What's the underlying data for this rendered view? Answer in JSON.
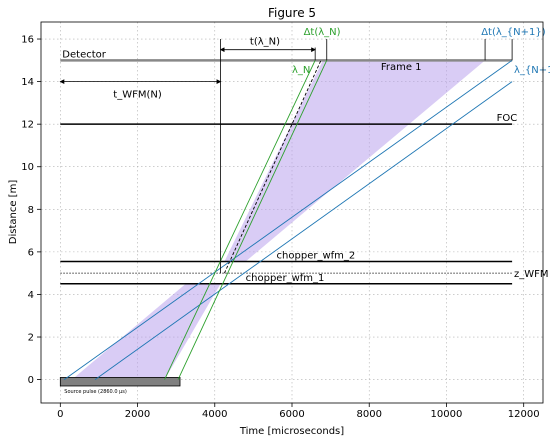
{
  "chart_data": {
    "type": "line",
    "title": "Figure 5",
    "xlabel": "Time [microseconds]",
    "ylabel": "Distance [m]",
    "xlim": [
      -500,
      12500
    ],
    "ylim": [
      -1.1,
      16.8
    ],
    "grid": true,
    "grid_style": "dotted",
    "xticks": [
      0,
      2000,
      4000,
      6000,
      8000,
      10000,
      12000
    ],
    "yticks": [
      0,
      2,
      4,
      6,
      8,
      10,
      12,
      14,
      16
    ],
    "colors": {
      "blue": "#1f77b4",
      "green": "#2ca02c",
      "frame_fill": "#b9a3ec",
      "pulse_fill": "#808080",
      "detector": "#888888"
    },
    "components": [
      {
        "name": "Detector",
        "distance": 15.0,
        "t_start": 0,
        "t_end": 11700,
        "color": "#888888",
        "width": 2.5
      },
      {
        "name": "FOC",
        "distance": 12.0,
        "t_start": 0,
        "t_end": 11700,
        "color": "#000000",
        "width": 1.5
      },
      {
        "name": "chopper_wfm_2",
        "distance": 5.55,
        "t_start": 0,
        "t_end": 11700,
        "color": "#000000",
        "width": 1.5
      },
      {
        "name": "chopper_wfm_1",
        "distance": 4.5,
        "t_start": 0,
        "t_end": 11700,
        "color": "#000000",
        "width": 1.5
      }
    ],
    "wfm_line": {
      "distance": 5.0,
      "label": "z_WFM"
    },
    "source_pulse": {
      "label": "Source pulse (2860.0 μs)",
      "t_start": 0,
      "t_end": 3100,
      "y_low": -0.3,
      "y_high": 0.1
    },
    "frame": {
      "label": "Frame 1",
      "polygons": [
        [
          [
            300,
            0
          ],
          [
            2700,
            0
          ],
          [
            4150,
            4.5
          ],
          [
            3250,
            4.5
          ]
        ],
        [
          [
            4250,
            5.55
          ],
          [
            4800,
            5.55
          ],
          [
            11000,
            15.0
          ],
          [
            6800,
            15.0
          ]
        ]
      ]
    },
    "series": [
      {
        "name": "λ_N+1 (blue, left edge)",
        "color": "#1f77b4",
        "points": [
          [
            100,
            0
          ],
          [
            11700,
            15.0
          ]
        ]
      },
      {
        "name": "λ_N+1 (blue, right edge)",
        "color": "#1f77b4",
        "points": [
          [
            900,
            0
          ],
          [
            11700,
            14.0
          ]
        ]
      },
      {
        "name": "λ_N (green, left edge)",
        "color": "#2ca02c",
        "points": [
          [
            2700,
            0
          ],
          [
            6600,
            15.0
          ]
        ]
      },
      {
        "name": "λ_N (green, right edge)",
        "color": "#2ca02c",
        "points": [
          [
            3050,
            0
          ],
          [
            6900,
            15.0
          ]
        ]
      },
      {
        "name": "λ_N (dashed centre)",
        "color": "#000000",
        "dashed": true,
        "points": [
          [
            4250,
            5.0
          ],
          [
            6750,
            15.0
          ]
        ]
      }
    ],
    "vertical_lines": [
      {
        "t": 4150,
        "y_low": 5.0,
        "y_high": 16.0,
        "color": "#000000"
      }
    ],
    "annotations": {
      "delta_t_lambda_n": "Δt(λ_N)",
      "delta_t_lambda_n1": "Δt(λ_{N+1})",
      "t_lambda_n": "t(λ_N)",
      "t_wfm_n": "t_WFM(N)",
      "lambda_n": "λ_N",
      "lambda_n1": "λ_{N+1}",
      "z_wfm": "z_WFM"
    }
  }
}
